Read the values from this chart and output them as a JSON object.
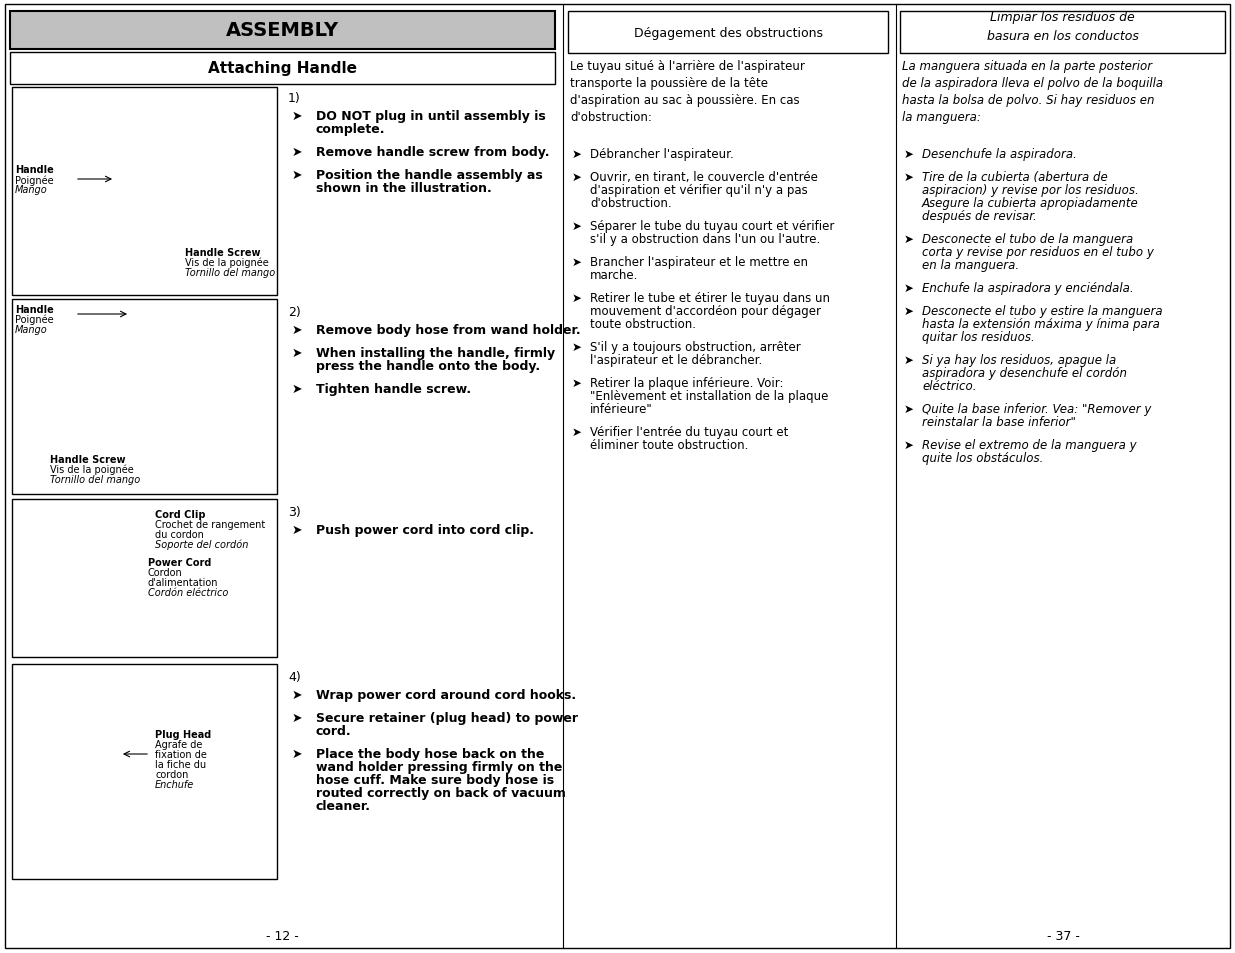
{
  "page_bg": "#ffffff",
  "assembly_header_text": "ASSEMBLY",
  "assembly_header_bg": "#c0c0c0",
  "attaching_handle_text": "Attaching Handle",
  "french_header": "Dégagement des obstructions",
  "spanish_header": "Limpiar los residuos de\nbasura en los conductos",
  "french_intro": "Le tuyau situé à l'arrière de l'aspirateur\ntransporte la poussière de la tête\nd'aspiration au sac à poussière. En cas\nd'obstruction:",
  "french_bullets": [
    "Débrancher l'aspirateur.",
    "Ouvrir, en tirant, le couvercle d'entrée\nd'aspiration et vérifier qu'il n'y a pas\nd'obstruction.",
    "Séparer le tube du tuyau court et vérifier\ns'il y a obstruction dans l'un ou l'autre.",
    "Brancher l'aspirateur et le mettre en\nmarche.",
    "Retirer le tube et étirer le tuyau dans un\nmouvement d'accordéon pour dégager\ntoute obstruction.",
    "S'il y a toujours obstruction, arrêter\nl'aspirateur et le débrancher.",
    "Retirer la plaque inférieure. Voir:\n\"Enlèvement et installation de la plaque\ninférieure\"",
    "Vérifier l'entrée du tuyau court et\néliminer toute obstruction."
  ],
  "spanish_intro": "La manguera situada en la parte posterior\nde la aspiradora lleva el polvo de la boquilla\nhasta la bolsa de polvo. Si hay residuos en\nla manguera:",
  "spanish_bullets": [
    "Desenchufe la aspiradora.",
    "Tire de la cubierta (abertura de\naspiracion) y revise por los residuos.\nAsegure la cubierta apropiadamente\ndespués de revisar.",
    "Desconecte el tubo de la manguera\ncorta y revise por residuos en el tubo y\nen la manguera.",
    "Enchufe la aspiradora y enciéndala.",
    "Desconecte el tubo y estire la manguera\nhasta la extensión máxima y ínima para\nquitar los residuos.",
    "Si ya hay los residuos, apague la\naspiradora y desenchufe el cordón\neléctrico.",
    "Quite la base inferior. Vea: \"Remover y\nreinstalar la base inferior\"",
    "Revise el extremo de la manguera y\nquite los obstáculos."
  ],
  "sec1_num": "1)",
  "sec1_bullets": [
    [
      "bold",
      "DO NOT plug in until assembly is\ncomplete."
    ],
    [
      "bold",
      "Remove handle screw from body."
    ],
    [
      "bold",
      "Position the handle assembly as\nshown in the illustration."
    ]
  ],
  "sec2_num": "2)",
  "sec2_bullets": [
    [
      "bold",
      "Remove body hose from wand holder."
    ],
    [
      "bold",
      "When installing the handle, firmly\npress the handle onto the body."
    ],
    [
      "bold",
      "Tighten handle screw."
    ]
  ],
  "sec3_num": "3)",
  "sec3_bullets": [
    [
      "bold",
      "Push power cord into cord clip."
    ]
  ],
  "sec4_num": "4)",
  "sec4_bullets": [
    [
      "bold",
      "Wrap power cord around cord hooks."
    ],
    [
      "bold",
      "Secure retainer (plug head) to power\ncord."
    ],
    [
      "bold",
      "Place the body hose back on the\nwand holder pressing firmly on the\nhose cuff. Make sure body hose is\nrouted correctly on back of vacuum\ncleaner."
    ]
  ],
  "img1_labels_left": [
    [
      "Handle",
      "Poignée",
      "Mango"
    ]
  ],
  "img1_labels_right": [
    [
      "Handle Screw",
      "Vis de la poignée",
      "Tornillo del mango"
    ]
  ],
  "img2_labels_left": [
    [
      "Handle",
      "Poignée",
      "Mango"
    ]
  ],
  "img2_labels_right": [
    [
      "Handle Screw",
      "Vis de la poignée",
      "Tornillo del mango"
    ]
  ],
  "img3_labels": [
    [
      "Cord Clip",
      "Crochet de rangement",
      "du cordon",
      "Soporte del cordón"
    ],
    [
      "Power Cord",
      "Cordon",
      "d'alimentation",
      "Cordón eléctrico"
    ]
  ],
  "img4_labels": [
    [
      "Plug Head",
      "Agrafe de",
      "fixation de",
      "la fiche du",
      "cordon",
      "Enchufe"
    ]
  ],
  "page_num_left": "- 12 -",
  "page_num_right": "- 37 -"
}
